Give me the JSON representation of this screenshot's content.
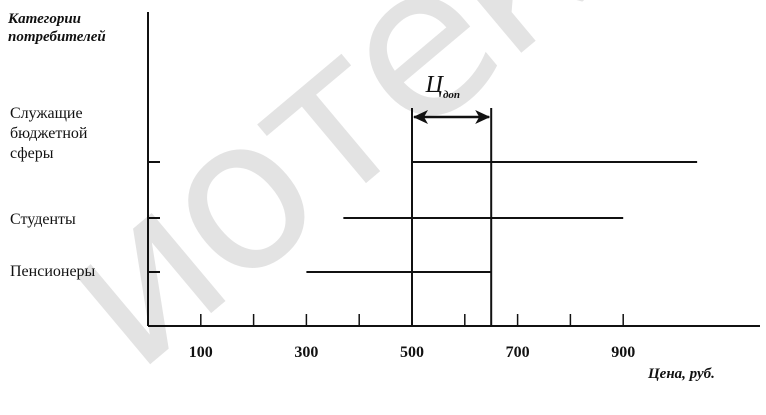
{
  "watermark": "иотека",
  "chart_data": {
    "type": "range-bar",
    "ylabel_lines": [
      "Категории",
      "потребителей"
    ],
    "xlabel": "Цена, руб.",
    "tick_labels": [
      {
        "value": 100,
        "label": "100"
      },
      {
        "value": 300,
        "label": "300"
      },
      {
        "value": 500,
        "label": "500"
      },
      {
        "value": 700,
        "label": "700"
      },
      {
        "value": 900,
        "label": "900"
      }
    ],
    "minor_ticks": [
      100,
      200,
      300,
      400,
      500,
      600,
      700,
      800,
      900
    ],
    "xlim": [
      0,
      1120
    ],
    "categories": [
      {
        "label_lines": [
          "Служащие",
          "бюджетной",
          "сферы"
        ],
        "range": [
          500,
          1040
        ]
      },
      {
        "label_lines": [
          "Студенты"
        ],
        "range": [
          370,
          900
        ]
      },
      {
        "label_lines": [
          "Пенсионеры"
        ],
        "range": [
          300,
          650
        ]
      }
    ],
    "annotation": {
      "main": "Ц",
      "sub": "доп",
      "range": [
        500,
        650
      ]
    }
  }
}
